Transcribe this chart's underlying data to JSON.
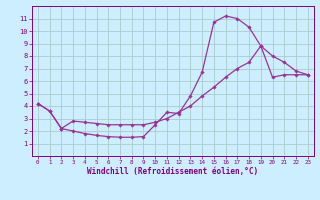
{
  "xlabel": "Windchill (Refroidissement éolien,°C)",
  "bg_color": "#cceeff",
  "grid_color": "#aacccc",
  "line_color": "#993399",
  "xlim": [
    -0.5,
    23.5
  ],
  "ylim": [
    0,
    12
  ],
  "xticks": [
    0,
    1,
    2,
    3,
    4,
    5,
    6,
    7,
    8,
    9,
    10,
    11,
    12,
    13,
    14,
    15,
    16,
    17,
    18,
    19,
    20,
    21,
    22,
    23
  ],
  "yticks": [
    1,
    2,
    3,
    4,
    5,
    6,
    7,
    8,
    9,
    10,
    11
  ],
  "line1_x": [
    0,
    1,
    2,
    3,
    4,
    5,
    6,
    7,
    8,
    9,
    10,
    11,
    12,
    13,
    14,
    15,
    16,
    17,
    18,
    19,
    20,
    21,
    22,
    23
  ],
  "line1_y": [
    4.2,
    3.6,
    2.2,
    2.0,
    1.8,
    1.65,
    1.55,
    1.5,
    1.5,
    1.55,
    2.5,
    3.5,
    3.4,
    4.8,
    6.7,
    10.7,
    11.2,
    11.0,
    10.3,
    8.8,
    8.0,
    7.5,
    6.8,
    6.5
  ],
  "line2_x": [
    0,
    1,
    2,
    3,
    4,
    5,
    6,
    7,
    8,
    9,
    10,
    11,
    12,
    13,
    14,
    15,
    16,
    17,
    18,
    19,
    20,
    21,
    22,
    23
  ],
  "line2_y": [
    4.2,
    3.6,
    2.2,
    2.8,
    2.7,
    2.6,
    2.5,
    2.5,
    2.5,
    2.5,
    2.7,
    3.0,
    3.5,
    4.0,
    4.8,
    5.5,
    6.3,
    7.0,
    7.5,
    8.8,
    6.3,
    6.5,
    6.5,
    6.5
  ],
  "tick_color": "#800080",
  "xlabel_fontsize": 5.5,
  "tick_fontsize_x": 4.2,
  "tick_fontsize_y": 5.0,
  "linewidth": 0.9,
  "markersize": 1.8
}
